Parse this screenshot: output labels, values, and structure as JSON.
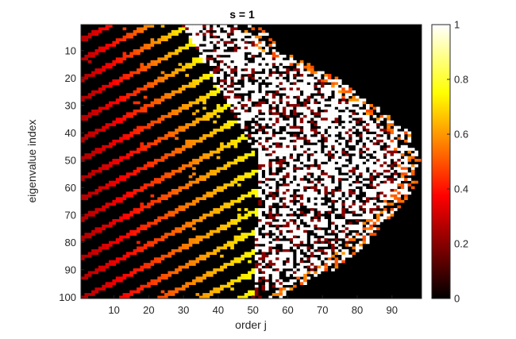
{
  "chart_data": {
    "type": "heatmap",
    "title": "s = 1",
    "xlabel": "order j",
    "ylabel": "eigenvalue index",
    "x_range": [
      1,
      98
    ],
    "y_range": [
      1,
      100
    ],
    "y_direction": "reversed",
    "x_ticks": [
      10,
      20,
      30,
      40,
      50,
      60,
      70,
      80,
      90
    ],
    "y_ticks": [
      10,
      20,
      30,
      40,
      50,
      60,
      70,
      80,
      90,
      100
    ],
    "colormap": "hot",
    "colorbar": {
      "range": [
        0,
        1
      ],
      "ticks": [
        0,
        0.2,
        0.4,
        0.6,
        0.8,
        1
      ],
      "tick_labels": [
        "0",
        "0.2",
        "0.4",
        "0.6",
        "0.8",
        "1"
      ]
    },
    "grid": false,
    "structure": {
      "background_value": 0,
      "envelope_j_at_index": [
        [
          1,
          52
        ],
        [
          10,
          58
        ],
        [
          20,
          74
        ],
        [
          30,
          85
        ],
        [
          40,
          95
        ],
        [
          50,
          98
        ],
        [
          60,
          97
        ],
        [
          70,
          90
        ],
        [
          80,
          83
        ],
        [
          90,
          73
        ],
        [
          100,
          58
        ]
      ],
      "saturated_band_j_at_index": [
        [
          1,
          30
        ],
        [
          50,
          52
        ],
        [
          100,
          50
        ]
      ],
      "sparse_diagonal_pattern_left_of": 50
    }
  }
}
